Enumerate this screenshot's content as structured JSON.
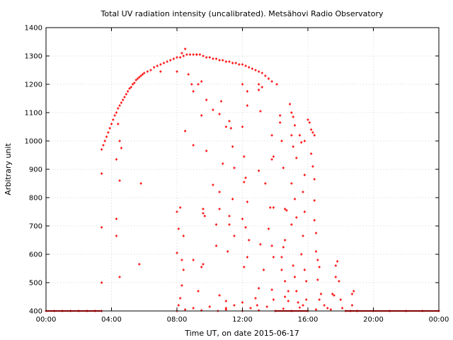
{
  "chart_data": {
    "type": "scatter",
    "title": "Total UV radiation intensity (uncalibrated). Metsähovi Radio Observatory",
    "xlabel": "Time UT, on date 2015-06-17",
    "ylabel": "Arbitrary unit",
    "x_unit": "hour",
    "xlim": [
      0,
      24
    ],
    "ylim": [
      400,
      1400
    ],
    "x_ticks": [
      0,
      4,
      8,
      12,
      16,
      20,
      24
    ],
    "x_tick_labels": [
      "00:00",
      "04:00",
      "08:00",
      "12:00",
      "16:00",
      "20:00",
      "00:00"
    ],
    "y_ticks": [
      400,
      500,
      600,
      700,
      800,
      900,
      1000,
      1100,
      1200,
      1300,
      1400
    ],
    "y_tick_labels": [
      "400",
      "500",
      "600",
      "700",
      "800",
      "900",
      "1000",
      "1100",
      "1200",
      "1300",
      "1400"
    ],
    "grid": true,
    "legend": "none",
    "series": [
      {
        "color": "#ff0000",
        "marker": "plus",
        "points": [
          [
            0.0,
            400
          ],
          [
            0.5,
            400
          ],
          [
            1.0,
            400
          ],
          [
            1.5,
            400
          ],
          [
            2.0,
            400
          ],
          [
            2.5,
            400
          ],
          [
            3.0,
            400
          ],
          [
            3.4,
            400
          ],
          [
            3.4,
            500
          ],
          [
            3.4,
            695
          ],
          [
            3.4,
            885
          ],
          [
            3.4,
            970
          ],
          [
            3.5,
            985
          ],
          [
            3.6,
            1000
          ],
          [
            3.7,
            1015
          ],
          [
            3.8,
            1030
          ],
          [
            3.9,
            1045
          ],
          [
            4.0,
            1060
          ],
          [
            4.1,
            1075
          ],
          [
            4.2,
            1090
          ],
          [
            4.3,
            1100
          ],
          [
            4.4,
            1115
          ],
          [
            4.5,
            1125
          ],
          [
            4.6,
            1135
          ],
          [
            4.7,
            1145
          ],
          [
            4.8,
            1155
          ],
          [
            4.9,
            1165
          ],
          [
            5.0,
            1175
          ],
          [
            5.1,
            1185
          ],
          [
            5.2,
            1190
          ],
          [
            5.3,
            1200
          ],
          [
            5.4,
            1205
          ],
          [
            5.5,
            1215
          ],
          [
            5.6,
            1220
          ],
          [
            5.7,
            1225
          ],
          [
            5.8,
            1230
          ],
          [
            5.9,
            1235
          ],
          [
            6.0,
            1240
          ],
          [
            6.2,
            1245
          ],
          [
            6.4,
            1250
          ],
          [
            6.6,
            1260
          ],
          [
            6.8,
            1265
          ],
          [
            7.0,
            1270
          ],
          [
            7.2,
            1275
          ],
          [
            7.4,
            1280
          ],
          [
            7.6,
            1285
          ],
          [
            7.8,
            1290
          ],
          [
            8.0,
            1295
          ],
          [
            8.2,
            1295
          ],
          [
            8.4,
            1300
          ],
          [
            8.6,
            1305
          ],
          [
            8.8,
            1305
          ],
          [
            9.0,
            1305
          ],
          [
            9.2,
            1305
          ],
          [
            9.4,
            1305
          ],
          [
            9.6,
            1300
          ],
          [
            9.8,
            1295
          ],
          [
            10.0,
            1295
          ],
          [
            10.2,
            1290
          ],
          [
            10.4,
            1290
          ],
          [
            10.6,
            1285
          ],
          [
            10.8,
            1285
          ],
          [
            11.0,
            1280
          ],
          [
            11.2,
            1280
          ],
          [
            11.4,
            1275
          ],
          [
            11.6,
            1275
          ],
          [
            11.8,
            1270
          ],
          [
            12.0,
            1270
          ],
          [
            12.2,
            1265
          ],
          [
            12.4,
            1260
          ],
          [
            12.6,
            1255
          ],
          [
            12.8,
            1250
          ],
          [
            13.0,
            1245
          ],
          [
            13.2,
            1240
          ],
          [
            13.4,
            1230
          ],
          [
            13.6,
            1220
          ],
          [
            13.8,
            1210
          ],
          [
            8.5,
            1325
          ],
          [
            8.3,
            1310
          ],
          [
            7.0,
            1245
          ],
          [
            8.0,
            1245
          ],
          [
            4.4,
            1060
          ],
          [
            4.5,
            1000
          ],
          [
            4.6,
            975
          ],
          [
            4.3,
            935
          ],
          [
            4.5,
            860
          ],
          [
            4.3,
            725
          ],
          [
            4.3,
            665
          ],
          [
            4.5,
            520
          ],
          [
            5.8,
            850
          ],
          [
            5.7,
            565
          ],
          [
            8.5,
            1035
          ],
          [
            8.0,
            750
          ],
          [
            8.0,
            605
          ],
          [
            8.2,
            765
          ],
          [
            8.1,
            690
          ],
          [
            8.4,
            665
          ],
          [
            8.3,
            580
          ],
          [
            8.4,
            545
          ],
          [
            8.3,
            490
          ],
          [
            8.2,
            445
          ],
          [
            8.1,
            420
          ],
          [
            8.7,
            1235
          ],
          [
            8.9,
            1200
          ],
          [
            9.0,
            1175
          ],
          [
            9.3,
            1200
          ],
          [
            9.5,
            1210
          ],
          [
            9.2,
            1305
          ],
          [
            9.8,
            1145
          ],
          [
            9.5,
            1090
          ],
          [
            9.0,
            985
          ],
          [
            9.8,
            965
          ],
          [
            9.6,
            760
          ],
          [
            9.6,
            745
          ],
          [
            9.7,
            735
          ],
          [
            9.0,
            580
          ],
          [
            9.6,
            565
          ],
          [
            9.5,
            555
          ],
          [
            9.3,
            470
          ],
          [
            10.2,
            1110
          ],
          [
            10.7,
            1140
          ],
          [
            10.6,
            1095
          ],
          [
            11.0,
            1050
          ],
          [
            10.8,
            920
          ],
          [
            10.2,
            845
          ],
          [
            10.6,
            820
          ],
          [
            10.6,
            760
          ],
          [
            10.4,
            705
          ],
          [
            10.4,
            630
          ],
          [
            10.6,
            455
          ],
          [
            11.0,
            410
          ],
          [
            11.2,
            1070
          ],
          [
            11.3,
            1045
          ],
          [
            11.4,
            980
          ],
          [
            11.5,
            905
          ],
          [
            11.4,
            795
          ],
          [
            11.2,
            735
          ],
          [
            11.2,
            705
          ],
          [
            11.5,
            665
          ],
          [
            11.1,
            610
          ],
          [
            11.0,
            435
          ],
          [
            12.0,
            1200
          ],
          [
            12.3,
            1175
          ],
          [
            12.3,
            1125
          ],
          [
            12.0,
            1050
          ],
          [
            12.1,
            945
          ],
          [
            12.2,
            870
          ],
          [
            12.1,
            855
          ],
          [
            12.3,
            785
          ],
          [
            12.0,
            725
          ],
          [
            12.2,
            695
          ],
          [
            12.4,
            650
          ],
          [
            12.3,
            590
          ],
          [
            12.1,
            555
          ],
          [
            12.0,
            430
          ],
          [
            13.0,
            1200
          ],
          [
            13.0,
            1180
          ],
          [
            13.2,
            1190
          ],
          [
            13.1,
            1105
          ],
          [
            13.0,
            895
          ],
          [
            13.4,
            850
          ],
          [
            13.1,
            635
          ],
          [
            13.3,
            545
          ],
          [
            13.0,
            480
          ],
          [
            12.8,
            445
          ],
          [
            12.9,
            420
          ],
          [
            13.8,
            1020
          ],
          [
            13.9,
            945
          ],
          [
            13.8,
            935
          ],
          [
            13.7,
            765
          ],
          [
            13.9,
            765
          ],
          [
            13.8,
            630
          ],
          [
            13.6,
            690
          ],
          [
            13.9,
            590
          ],
          [
            13.8,
            475
          ],
          [
            13.9,
            440
          ],
          [
            14.1,
            1200
          ],
          [
            14.3,
            1090
          ],
          [
            14.3,
            1065
          ],
          [
            14.4,
            1000
          ],
          [
            14.5,
            905
          ],
          [
            14.6,
            760
          ],
          [
            14.7,
            755
          ],
          [
            14.6,
            650
          ],
          [
            14.5,
            625
          ],
          [
            14.4,
            590
          ],
          [
            14.4,
            545
          ],
          [
            14.6,
            505
          ],
          [
            14.8,
            470
          ],
          [
            14.6,
            450
          ],
          [
            14.8,
            435
          ],
          [
            14.9,
            1130
          ],
          [
            15.0,
            1100
          ],
          [
            15.1,
            1085
          ],
          [
            15.2,
            1055
          ],
          [
            15.0,
            1020
          ],
          [
            15.1,
            980
          ],
          [
            15.3,
            940
          ],
          [
            15.0,
            850
          ],
          [
            15.2,
            795
          ],
          [
            15.3,
            730
          ],
          [
            15.0,
            705
          ],
          [
            15.1,
            560
          ],
          [
            15.2,
            520
          ],
          [
            15.3,
            470
          ],
          [
            15.4,
            430
          ],
          [
            15.5,
            1020
          ],
          [
            15.6,
            995
          ],
          [
            15.8,
            1000
          ],
          [
            15.8,
            880
          ],
          [
            15.7,
            820
          ],
          [
            15.8,
            750
          ],
          [
            15.7,
            665
          ],
          [
            15.6,
            600
          ],
          [
            15.8,
            545
          ],
          [
            15.9,
            505
          ],
          [
            15.9,
            440
          ],
          [
            15.7,
            420
          ],
          [
            16.0,
            1075
          ],
          [
            16.1,
            1065
          ],
          [
            16.2,
            1040
          ],
          [
            16.3,
            1030
          ],
          [
            16.4,
            1020
          ],
          [
            16.2,
            955
          ],
          [
            16.3,
            910
          ],
          [
            16.4,
            865
          ],
          [
            16.4,
            790
          ],
          [
            16.4,
            720
          ],
          [
            16.5,
            675
          ],
          [
            16.5,
            610
          ],
          [
            16.6,
            580
          ],
          [
            16.7,
            555
          ],
          [
            16.6,
            510
          ],
          [
            16.8,
            460
          ],
          [
            16.7,
            440
          ],
          [
            17.0,
            420
          ],
          [
            17.2,
            410
          ],
          [
            17.4,
            405
          ],
          [
            17.5,
            460
          ],
          [
            17.6,
            455
          ],
          [
            17.7,
            520
          ],
          [
            17.7,
            560
          ],
          [
            17.8,
            575
          ],
          [
            17.9,
            505
          ],
          [
            18.0,
            440
          ],
          [
            18.1,
            410
          ],
          [
            18.3,
            400
          ],
          [
            18.6,
            400
          ],
          [
            18.7,
            460
          ],
          [
            18.8,
            470
          ],
          [
            18.7,
            420
          ],
          [
            19.0,
            400
          ],
          [
            20.0,
            400
          ],
          [
            21.0,
            400
          ],
          [
            22.0,
            400
          ],
          [
            23.0,
            400
          ],
          [
            24.0,
            400
          ],
          [
            8.0,
            400
          ],
          [
            8.5,
            405
          ],
          [
            9.0,
            410
          ],
          [
            9.5,
            402
          ],
          [
            10.0,
            415
          ],
          [
            10.5,
            400
          ],
          [
            11.0,
            405
          ],
          [
            11.5,
            420
          ],
          [
            12.0,
            400
          ],
          [
            12.5,
            410
          ],
          [
            13.0,
            402
          ],
          [
            13.5,
            415
          ],
          [
            14.0,
            400
          ],
          [
            14.5,
            408
          ],
          [
            15.0,
            400
          ],
          [
            15.5,
            412
          ],
          [
            16.0,
            400
          ],
          [
            16.5,
            405
          ]
        ]
      }
    ]
  }
}
